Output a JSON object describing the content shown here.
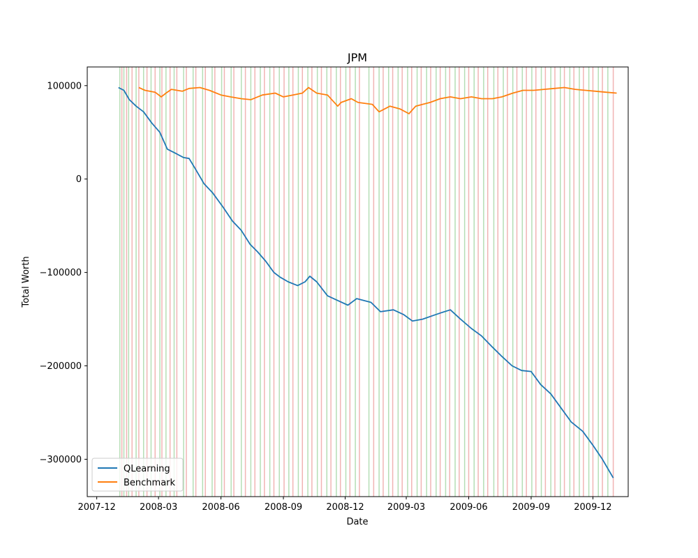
{
  "chart_data": {
    "type": "line",
    "title": "JPM",
    "xlabel": "Date",
    "ylabel": "Total Worth",
    "xlim": [
      "2007-11-17",
      "2010-01-22"
    ],
    "ylim": [
      -340000,
      120000
    ],
    "x_ticks": [
      "2007-12",
      "2008-03",
      "2008-06",
      "2008-09",
      "2008-12",
      "2009-03",
      "2009-06",
      "2009-09",
      "2009-12"
    ],
    "y_ticks": [
      100000,
      0,
      -100000,
      -200000,
      -300000
    ],
    "y_tick_labels": [
      "100000",
      "0",
      "−100000",
      "−200000",
      "−300000"
    ],
    "legend_position": "lower-left",
    "grid": false,
    "series": [
      {
        "name": "QLearning",
        "color": "#1f77b4",
        "x": [
          "2008-01-02",
          "2008-01-10",
          "2008-01-18",
          "2008-01-28",
          "2008-02-08",
          "2008-02-20",
          "2008-03-03",
          "2008-03-14",
          "2008-03-25",
          "2008-04-07",
          "2008-04-15",
          "2008-04-25",
          "2008-05-07",
          "2008-05-20",
          "2008-06-04",
          "2008-06-18",
          "2008-07-01",
          "2008-07-14",
          "2008-07-25",
          "2008-08-06",
          "2008-08-18",
          "2008-08-27",
          "2008-09-08",
          "2008-09-22",
          "2008-10-03",
          "2008-10-10",
          "2008-10-20",
          "2008-11-05",
          "2008-11-20",
          "2008-12-05",
          "2008-12-18",
          "2009-01-08",
          "2009-01-22",
          "2009-02-10",
          "2009-02-25",
          "2009-03-10",
          "2009-03-25",
          "2009-04-10",
          "2009-04-22",
          "2009-05-05",
          "2009-05-20",
          "2009-06-05",
          "2009-06-20",
          "2009-07-06",
          "2009-07-20",
          "2009-08-04",
          "2009-08-18",
          "2009-09-01",
          "2009-09-15",
          "2009-09-30",
          "2009-10-15",
          "2009-10-30",
          "2009-11-16",
          "2009-12-01",
          "2009-12-15",
          "2009-12-31"
        ],
        "y": [
          98000,
          95000,
          85000,
          78000,
          72000,
          60000,
          50000,
          32000,
          28000,
          23000,
          22000,
          10000,
          -5000,
          -15000,
          -30000,
          -45000,
          -55000,
          -70000,
          -78000,
          -88000,
          -100000,
          -105000,
          -110000,
          -114000,
          -110000,
          -104000,
          -110000,
          -125000,
          -130000,
          -135000,
          -128000,
          -132000,
          -142000,
          -140000,
          -145000,
          -152000,
          -150000,
          -146000,
          -143000,
          -140000,
          -150000,
          -160000,
          -168000,
          -180000,
          -190000,
          -200000,
          -205000,
          -206000,
          -220000,
          -230000,
          -245000,
          -260000,
          -270000,
          -285000,
          -300000,
          -320000
        ]
      },
      {
        "name": "Benchmark",
        "color": "#ff7f0e",
        "x": [
          "2008-02-01",
          "2008-02-10",
          "2008-02-25",
          "2008-03-05",
          "2008-03-12",
          "2008-03-20",
          "2008-04-05",
          "2008-04-15",
          "2008-05-01",
          "2008-05-15",
          "2008-06-01",
          "2008-06-15",
          "2008-07-01",
          "2008-07-15",
          "2008-08-01",
          "2008-08-20",
          "2008-09-01",
          "2008-09-15",
          "2008-09-29",
          "2008-10-08",
          "2008-10-20",
          "2008-11-05",
          "2008-11-20",
          "2008-11-25",
          "2008-12-10",
          "2008-12-20",
          "2009-01-10",
          "2009-01-20",
          "2009-02-05",
          "2009-02-20",
          "2009-03-05",
          "2009-03-15",
          "2009-03-25",
          "2009-04-05",
          "2009-04-20",
          "2009-05-05",
          "2009-05-20",
          "2009-06-05",
          "2009-06-20",
          "2009-07-06",
          "2009-07-20",
          "2009-08-05",
          "2009-08-20",
          "2009-09-05",
          "2009-09-20",
          "2009-10-05",
          "2009-10-20",
          "2009-11-05",
          "2009-11-20",
          "2009-12-05",
          "2009-12-20",
          "2010-01-05"
        ],
        "y": [
          98000,
          95000,
          93000,
          88000,
          92000,
          96000,
          94000,
          97000,
          98000,
          95000,
          90000,
          88000,
          86000,
          85000,
          90000,
          92000,
          88000,
          90000,
          92000,
          98000,
          92000,
          90000,
          78000,
          82000,
          86000,
          82000,
          80000,
          72000,
          78000,
          75000,
          70000,
          78000,
          80000,
          82000,
          86000,
          88000,
          86000,
          88000,
          86000,
          86000,
          88000,
          92000,
          95000,
          95000,
          96000,
          97000,
          98000,
          96000,
          95000,
          94000,
          93000,
          92000
        ]
      }
    ],
    "trade_markers": [
      {
        "color": "#2ca02c",
        "dates": [
          "2008-01-04",
          "2008-01-10",
          "2008-01-17",
          "2008-01-28",
          "2008-02-08",
          "2008-02-19",
          "2008-03-03",
          "2008-03-12",
          "2008-03-24",
          "2008-04-07",
          "2008-04-21",
          "2008-05-05",
          "2008-05-19",
          "2008-06-02",
          "2008-06-16",
          "2008-07-01",
          "2008-07-15",
          "2008-07-29",
          "2008-08-12",
          "2008-08-26",
          "2008-09-09",
          "2008-09-23",
          "2008-10-07",
          "2008-10-21",
          "2008-11-04",
          "2008-11-18",
          "2008-12-02",
          "2008-12-16",
          "2009-01-05",
          "2009-01-20",
          "2009-02-03",
          "2009-02-17",
          "2009-03-03",
          "2009-03-17",
          "2009-03-31",
          "2009-04-14",
          "2009-04-28",
          "2009-05-12",
          "2009-05-26",
          "2009-06-09",
          "2009-06-23",
          "2009-07-08",
          "2009-07-22",
          "2009-08-05",
          "2009-08-19",
          "2009-09-02",
          "2009-09-16",
          "2009-09-30",
          "2009-10-14",
          "2009-10-28",
          "2009-11-11",
          "2009-11-25",
          "2009-12-09",
          "2009-12-23"
        ]
      },
      {
        "color": "#d62728",
        "dates": [
          "2008-01-07",
          "2008-01-14",
          "2008-01-22",
          "2008-02-01",
          "2008-02-13",
          "2008-02-25",
          "2008-03-06",
          "2008-03-18",
          "2008-03-28",
          "2008-04-11",
          "2008-04-25",
          "2008-05-09",
          "2008-05-23",
          "2008-06-06",
          "2008-06-20",
          "2008-07-07",
          "2008-07-21",
          "2008-08-04",
          "2008-08-18",
          "2008-09-02",
          "2008-09-15",
          "2008-09-29",
          "2008-10-13",
          "2008-10-27",
          "2008-11-10",
          "2008-11-24",
          "2008-12-08",
          "2008-12-22",
          "2009-01-12",
          "2009-01-26",
          "2009-02-09",
          "2009-02-23",
          "2009-03-09",
          "2009-03-23",
          "2009-04-06",
          "2009-04-20",
          "2009-05-04",
          "2009-05-18",
          "2009-06-01",
          "2009-06-15",
          "2009-06-29",
          "2009-07-14",
          "2009-07-28",
          "2009-08-11",
          "2009-08-25",
          "2009-09-08",
          "2009-09-22",
          "2009-10-06",
          "2009-10-20",
          "2009-11-03",
          "2009-11-17",
          "2009-12-01",
          "2009-12-15",
          "2009-12-31"
        ]
      }
    ]
  }
}
